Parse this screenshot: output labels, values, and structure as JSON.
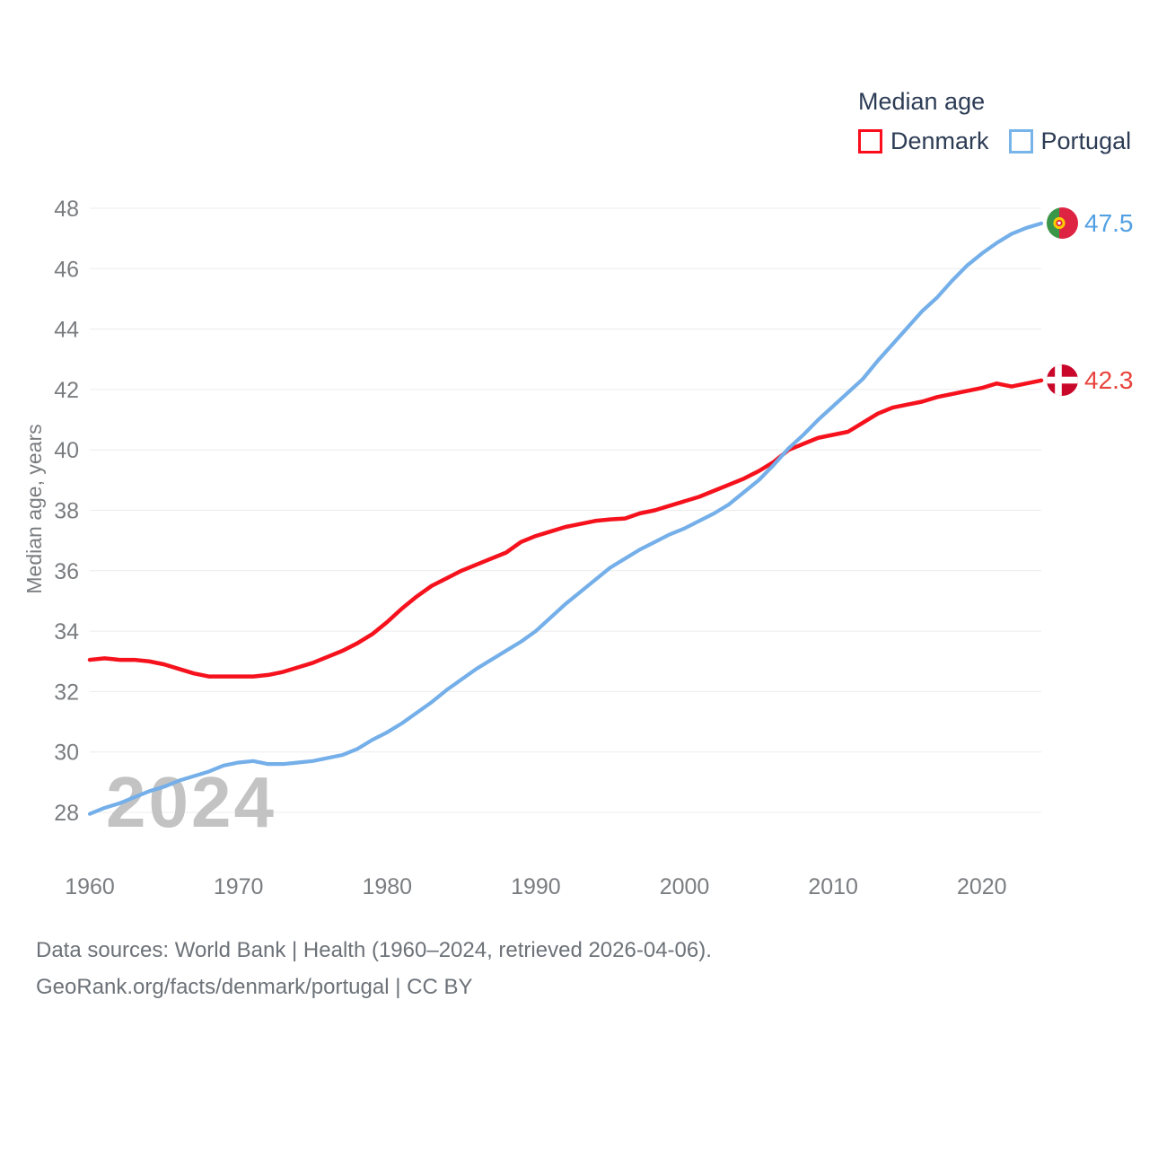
{
  "legend": {
    "title": "Median age",
    "items": [
      {
        "label": "Denmark",
        "color": "#fb0d1b"
      },
      {
        "label": "Portugal",
        "color": "#77b4ea"
      }
    ]
  },
  "footer": {
    "line1": "Data sources: World Bank | Health (1960–2024, retrieved 2026-04-06).",
    "line2": "GeoRank.org/facts/denmark/portugal | CC BY"
  },
  "chart_data": {
    "type": "line",
    "title": "Median age",
    "ylabel": "Median age, years",
    "watermark": "2024",
    "grid_color": "#ececec",
    "xlim": [
      1960,
      2024
    ],
    "ylim": [
      28,
      48
    ],
    "x_ticks": [
      1960,
      1970,
      1980,
      1990,
      2000,
      2010,
      2020
    ],
    "y_ticks": [
      28,
      30,
      32,
      34,
      36,
      38,
      40,
      42,
      44,
      46,
      48
    ],
    "series": [
      {
        "name": "Denmark",
        "color": "#f5121d",
        "label_color": "#e8433c",
        "width": 4.5,
        "end_label": "42.3",
        "values": [
          33.05,
          33.1,
          33.05,
          33.05,
          33.0,
          32.9,
          32.75,
          32.6,
          32.5,
          32.5,
          32.5,
          32.5,
          32.55,
          32.65,
          32.8,
          32.95,
          33.15,
          33.35,
          33.6,
          33.9,
          34.3,
          34.75,
          35.15,
          35.5,
          35.75,
          36.0,
          36.2,
          36.4,
          36.6,
          36.95,
          37.15,
          37.3,
          37.45,
          37.55,
          37.65,
          37.7,
          37.73,
          37.9,
          38.0,
          38.15,
          38.3,
          38.45,
          38.65,
          38.85,
          39.05,
          39.3,
          39.6,
          40.0,
          40.2,
          40.4,
          40.5,
          40.6,
          40.9,
          41.2,
          41.4,
          41.5,
          41.6,
          41.75,
          41.85,
          41.95,
          42.05,
          42.2,
          42.1,
          42.2,
          42.3
        ]
      },
      {
        "name": "Portugal",
        "color": "#74afe9",
        "label_color": "#51a0e3",
        "width": 4.2,
        "end_label": "47.5",
        "values": [
          27.95,
          28.15,
          28.3,
          28.5,
          28.7,
          28.85,
          29.05,
          29.2,
          29.35,
          29.55,
          29.65,
          29.7,
          29.6,
          29.6,
          29.65,
          29.7,
          29.8,
          29.9,
          30.1,
          30.4,
          30.65,
          30.95,
          31.3,
          31.65,
          32.05,
          32.4,
          32.75,
          33.05,
          33.35,
          33.65,
          34.0,
          34.45,
          34.9,
          35.3,
          35.7,
          36.1,
          36.4,
          36.7,
          36.95,
          37.2,
          37.4,
          37.65,
          37.9,
          38.2,
          38.6,
          39.0,
          39.5,
          40.05,
          40.5,
          41.0,
          41.45,
          41.9,
          42.35,
          42.95,
          43.5,
          44.05,
          44.6,
          45.05,
          45.6,
          46.1,
          46.5,
          46.85,
          47.15,
          47.35,
          47.5
        ]
      }
    ]
  }
}
